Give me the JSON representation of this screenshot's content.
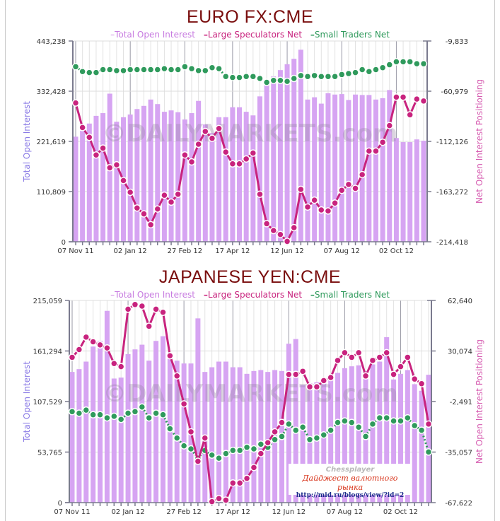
{
  "legend": {
    "total_open_interest": "Total Open Interest",
    "large_speculators_net": "Large Speculators Net",
    "small_traders_net": "Small Traders Net"
  },
  "colors": {
    "bars": "#d6a4f2",
    "large_speculators": "#c8237e",
    "small_traders": "#2f9a5c",
    "title": "#7a0e0e"
  },
  "watermark": "©DAILYMARKETS.com",
  "stamp": {
    "line1": "Chessplayer",
    "line2": "Дайджест валютного рынка",
    "line3": "http://mid.ru/blogs/view/?id=2"
  },
  "chart_data": [
    {
      "type": "bar+line",
      "title": "EURO FX:CME",
      "ylabel_left": "Total Open Interest",
      "ylabel_right": "Net Open Interest Positioning",
      "left_ticks": [
        "0",
        "110,809",
        "221,619",
        "332,428",
        "443,238"
      ],
      "right_ticks": [
        "-214,418",
        "-163,272",
        "-112,126",
        "-60,979",
        "-9,833"
      ],
      "ylim_left": [
        0,
        443238
      ],
      "ylim_right": [
        -214418,
        -9833
      ],
      "x_ticks": [
        "07 Nov 11",
        "02 Jan 12",
        "27 Feb 12",
        "17 Apr 12",
        "12 Jun 12",
        "07 Aug 12",
        "02 Oct 12"
      ],
      "x_tick_index": [
        0,
        8,
        16,
        23,
        31,
        39,
        47
      ],
      "grid": true,
      "legend_position": "top",
      "n": 52,
      "total_open_interest": [
        232000,
        245000,
        261000,
        278000,
        284000,
        327000,
        265000,
        275000,
        281000,
        293000,
        300000,
        314000,
        304000,
        287000,
        290000,
        286000,
        270000,
        284000,
        311000,
        259000,
        240000,
        275000,
        275000,
        297000,
        297000,
        287000,
        279000,
        321000,
        357000,
        365000,
        379000,
        392000,
        404000,
        424000,
        314000,
        319000,
        305000,
        328000,
        325000,
        326000,
        313000,
        325000,
        324000,
        324000,
        314000,
        317000,
        335000,
        229000,
        220000,
        220000,
        226000,
        223000
      ],
      "large_speculators_net": [
        -73000,
        -98000,
        -108000,
        -126000,
        -119000,
        -139000,
        -136000,
        -152000,
        -164000,
        -180000,
        -186000,
        -197000,
        -181000,
        -167000,
        -174000,
        -166000,
        -126000,
        -133000,
        -115000,
        -102000,
        -109000,
        -99000,
        -123000,
        -135000,
        -135000,
        -130000,
        -124000,
        -166000,
        -196000,
        -203000,
        -207000,
        -214000,
        -200000,
        -161000,
        -179000,
        -172000,
        -182000,
        -183000,
        -175000,
        -162000,
        -156000,
        -160000,
        -146000,
        -122000,
        -122000,
        -113000,
        -96000,
        -67000,
        -67000,
        -85000,
        -69000,
        -71000
      ],
      "small_traders_net": [
        -36000,
        -41000,
        -42000,
        -42000,
        -39000,
        -39000,
        -40000,
        -40000,
        -39000,
        -39000,
        -39000,
        -39000,
        -39000,
        -38000,
        -39000,
        -39000,
        -36000,
        -38000,
        -40000,
        -40000,
        -37000,
        -38000,
        -46000,
        -47000,
        -47000,
        -46000,
        -46000,
        -48000,
        -52000,
        -50000,
        -50000,
        -51000,
        -48000,
        -45000,
        -46000,
        -45000,
        -46000,
        -46000,
        -46000,
        -44000,
        -43000,
        -42000,
        -39000,
        -41000,
        -39000,
        -37000,
        -34000,
        -31000,
        -31000,
        -31000,
        -33000,
        -33000
      ]
    },
    {
      "type": "bar+line",
      "title": "JAPANESE YEN:CME",
      "ylabel_left": "Total Open Interest",
      "ylabel_right": "Net Open Interest Positioning",
      "left_ticks": [
        "0",
        "53,765",
        "107,529",
        "161,294",
        "215,059"
      ],
      "right_ticks": [
        "-67,622",
        "-35,057",
        "-2,491",
        "30,074",
        "62,640"
      ],
      "ylim_left": [
        0,
        215059
      ],
      "ylim_right": [
        -67622,
        62640
      ],
      "x_ticks": [
        "07 Nov 11",
        "02 Jan 12",
        "27 Feb 12",
        "17 Apr 12",
        "12 Jun 12",
        "07 Aug 12",
        "02 Oct 12"
      ],
      "x_tick_index": [
        0,
        8,
        16,
        23,
        31,
        39,
        47
      ],
      "grid": true,
      "legend_position": "top",
      "n": 52,
      "total_open_interest": [
        139000,
        142000,
        150000,
        166000,
        172000,
        204000,
        132000,
        133000,
        158000,
        163000,
        168000,
        151000,
        172000,
        177000,
        154000,
        151000,
        148000,
        148000,
        196000,
        139000,
        144000,
        150000,
        150000,
        144000,
        144000,
        137000,
        140000,
        141000,
        139000,
        141000,
        140000,
        169000,
        174000,
        125000,
        127000,
        128000,
        131000,
        132000,
        138000,
        143000,
        145000,
        146000,
        140000,
        147000,
        150000,
        176000,
        131000,
        137000,
        141000,
        126000,
        119000,
        136000
      ],
      "large_speculators_net": [
        26000,
        31000,
        39000,
        36000,
        34000,
        32000,
        22000,
        20000,
        57000,
        60000,
        59000,
        46000,
        57000,
        55000,
        27000,
        14000,
        -4000,
        -22000,
        -41000,
        -26000,
        -67000,
        -65000,
        -66000,
        -55000,
        -55000,
        -52000,
        -45000,
        -36000,
        -29000,
        -22000,
        -16000,
        15000,
        15000,
        17000,
        7000,
        7000,
        11000,
        13000,
        24000,
        29000,
        26000,
        29000,
        14000,
        24000,
        26000,
        29000,
        15000,
        20000,
        26000,
        12000,
        9000,
        -17000
      ],
      "small_traders_net": [
        -9000,
        -10000,
        -8000,
        -11000,
        -11000,
        -13000,
        -12000,
        -14000,
        -10000,
        -9000,
        -6000,
        -13000,
        -10000,
        -11000,
        -20000,
        -26000,
        -31000,
        -33000,
        -39000,
        -34000,
        -37000,
        -39000,
        -36000,
        -34000,
        -34000,
        -32000,
        -33000,
        -30000,
        -32000,
        -27000,
        -25000,
        -17000,
        -21000,
        -19000,
        -27000,
        -26000,
        -24000,
        -21000,
        -16000,
        -15000,
        -16000,
        -19000,
        -25000,
        -17000,
        -13000,
        -13000,
        -15000,
        -15000,
        -13000,
        -18000,
        -21000,
        -35000
      ]
    }
  ]
}
